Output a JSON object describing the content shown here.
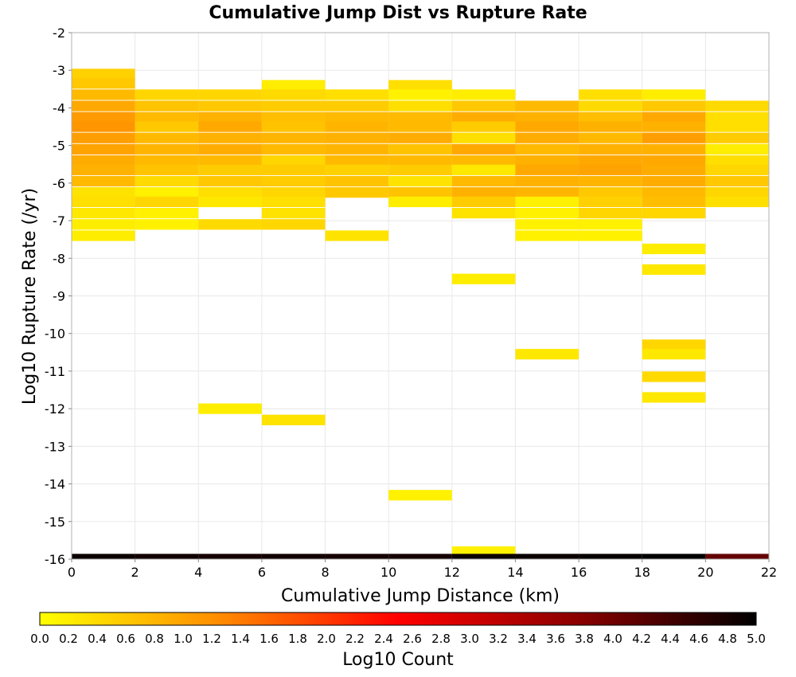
{
  "chart_data": {
    "type": "heatmap",
    "title": "Cumulative Jump Dist vs Rupture Rate",
    "xlabel": "Cumulative Jump Distance (km)",
    "ylabel": "Log10 Rupture Rate (/yr)",
    "xlim": [
      0,
      22
    ],
    "ylim": [
      -16,
      -2
    ],
    "x_ticks": [
      "0",
      "2",
      "4",
      "6",
      "8",
      "10",
      "12",
      "14",
      "16",
      "18",
      "20",
      "22"
    ],
    "y_ticks": [
      "-2",
      "-3",
      "-4",
      "-5",
      "-6",
      "-7",
      "-8",
      "-9",
      "-10",
      "-11",
      "-12",
      "-13",
      "-14",
      "-15",
      "-16"
    ],
    "grid": true,
    "x_bin_width": 2,
    "y_bin_height": 0.28,
    "colorbar": {
      "label": "Log10 Count",
      "range": [
        0,
        5
      ],
      "ticks": [
        "0.0",
        "0.2",
        "0.4",
        "0.6",
        "0.8",
        "1.0",
        "1.2",
        "1.4",
        "1.6",
        "1.8",
        "2.0",
        "2.2",
        "2.4",
        "2.6",
        "2.8",
        "3.0",
        "3.2",
        "3.4",
        "3.6",
        "3.8",
        "4.0",
        "4.2",
        "4.4",
        "4.6",
        "4.8",
        "5.0"
      ],
      "colormap": [
        "#ffff00",
        "#ff8c00",
        "#ff0000",
        "#8b0000",
        "#000000"
      ],
      "placement": "bottom"
    },
    "cells": [
      {
        "x": 0,
        "y": -3.1,
        "v": 0.5
      },
      {
        "x": 0,
        "y": -3.35,
        "v": 0.6
      },
      {
        "x": 0,
        "y": -3.65,
        "v": 0.75
      },
      {
        "x": 0,
        "y": -3.95,
        "v": 0.95
      },
      {
        "x": 0,
        "y": -4.25,
        "v": 1.1
      },
      {
        "x": 0,
        "y": -4.5,
        "v": 1.15
      },
      {
        "x": 0,
        "y": -4.8,
        "v": 1.05
      },
      {
        "x": 0,
        "y": -5.1,
        "v": 1.0
      },
      {
        "x": 0,
        "y": -5.4,
        "v": 0.9
      },
      {
        "x": 0,
        "y": -5.65,
        "v": 0.85
      },
      {
        "x": 0,
        "y": -5.95,
        "v": 0.75
      },
      {
        "x": 0,
        "y": -6.25,
        "v": 0.3
      },
      {
        "x": 0,
        "y": -6.5,
        "v": 0.35
      },
      {
        "x": 0,
        "y": -6.8,
        "v": 0.25
      },
      {
        "x": 0,
        "y": -7.1,
        "v": 0.2
      },
      {
        "x": 0,
        "y": -7.4,
        "v": 0.2
      },
      {
        "x": 2,
        "y": -3.65,
        "v": 0.45
      },
      {
        "x": 2,
        "y": -3.95,
        "v": 0.65
      },
      {
        "x": 2,
        "y": -4.25,
        "v": 0.75
      },
      {
        "x": 2,
        "y": -4.5,
        "v": 0.6
      },
      {
        "x": 2,
        "y": -4.8,
        "v": 0.75
      },
      {
        "x": 2,
        "y": -5.1,
        "v": 0.8
      },
      {
        "x": 2,
        "y": -5.4,
        "v": 0.75
      },
      {
        "x": 2,
        "y": -5.65,
        "v": 0.65
      },
      {
        "x": 2,
        "y": -5.95,
        "v": 0.4
      },
      {
        "x": 2,
        "y": -6.25,
        "v": 0.15
      },
      {
        "x": 2,
        "y": -6.5,
        "v": 0.45
      },
      {
        "x": 2,
        "y": -6.8,
        "v": 0.15
      },
      {
        "x": 2,
        "y": -7.1,
        "v": 0.15
      },
      {
        "x": 4,
        "y": -3.65,
        "v": 0.45
      },
      {
        "x": 4,
        "y": -3.95,
        "v": 0.6
      },
      {
        "x": 4,
        "y": -4.25,
        "v": 0.85
      },
      {
        "x": 4,
        "y": -4.5,
        "v": 0.95
      },
      {
        "x": 4,
        "y": -4.8,
        "v": 0.85
      },
      {
        "x": 4,
        "y": -5.1,
        "v": 0.9
      },
      {
        "x": 4,
        "y": -5.4,
        "v": 0.75
      },
      {
        "x": 4,
        "y": -5.65,
        "v": 0.55
      },
      {
        "x": 4,
        "y": -5.95,
        "v": 0.6
      },
      {
        "x": 4,
        "y": -6.25,
        "v": 0.35
      },
      {
        "x": 4,
        "y": -6.5,
        "v": 0.25
      },
      {
        "x": 4,
        "y": -7.1,
        "v": 0.4
      },
      {
        "x": 4,
        "y": -12.0,
        "v": 0.2
      },
      {
        "x": 6,
        "y": -3.4,
        "v": 0.2
      },
      {
        "x": 6,
        "y": -3.65,
        "v": 0.4
      },
      {
        "x": 6,
        "y": -3.95,
        "v": 0.55
      },
      {
        "x": 6,
        "y": -4.25,
        "v": 0.7
      },
      {
        "x": 6,
        "y": -4.5,
        "v": 0.65
      },
      {
        "x": 6,
        "y": -4.8,
        "v": 0.8
      },
      {
        "x": 6,
        "y": -5.1,
        "v": 0.75
      },
      {
        "x": 6,
        "y": -5.4,
        "v": 0.45
      },
      {
        "x": 6,
        "y": -5.65,
        "v": 0.55
      },
      {
        "x": 6,
        "y": -5.95,
        "v": 0.55
      },
      {
        "x": 6,
        "y": -6.25,
        "v": 0.45
      },
      {
        "x": 6,
        "y": -6.5,
        "v": 0.35
      },
      {
        "x": 6,
        "y": -6.8,
        "v": 0.3
      },
      {
        "x": 6,
        "y": -7.1,
        "v": 0.45
      },
      {
        "x": 6,
        "y": -12.3,
        "v": 0.3
      },
      {
        "x": 8,
        "y": -3.65,
        "v": 0.35
      },
      {
        "x": 8,
        "y": -3.95,
        "v": 0.55
      },
      {
        "x": 8,
        "y": -4.25,
        "v": 0.75
      },
      {
        "x": 8,
        "y": -4.5,
        "v": 0.8
      },
      {
        "x": 8,
        "y": -4.8,
        "v": 0.85
      },
      {
        "x": 8,
        "y": -5.1,
        "v": 0.8
      },
      {
        "x": 8,
        "y": -5.4,
        "v": 0.75
      },
      {
        "x": 8,
        "y": -5.65,
        "v": 0.5
      },
      {
        "x": 8,
        "y": -5.95,
        "v": 0.65
      },
      {
        "x": 8,
        "y": -6.25,
        "v": 0.6
      },
      {
        "x": 8,
        "y": -7.4,
        "v": 0.3
      },
      {
        "x": 10,
        "y": -3.4,
        "v": 0.35
      },
      {
        "x": 10,
        "y": -3.65,
        "v": 0.15
      },
      {
        "x": 10,
        "y": -3.95,
        "v": 0.35
      },
      {
        "x": 10,
        "y": -4.25,
        "v": 0.75
      },
      {
        "x": 10,
        "y": -4.5,
        "v": 0.75
      },
      {
        "x": 10,
        "y": -4.8,
        "v": 0.9
      },
      {
        "x": 10,
        "y": -5.1,
        "v": 0.65
      },
      {
        "x": 10,
        "y": -5.4,
        "v": 0.75
      },
      {
        "x": 10,
        "y": -5.65,
        "v": 0.55
      },
      {
        "x": 10,
        "y": -5.95,
        "v": 0.3
      },
      {
        "x": 10,
        "y": -6.25,
        "v": 0.65
      },
      {
        "x": 10,
        "y": -6.5,
        "v": 0.2
      },
      {
        "x": 10,
        "y": -14.3,
        "v": 0.15
      },
      {
        "x": 12,
        "y": -3.65,
        "v": 0.2
      },
      {
        "x": 12,
        "y": -3.95,
        "v": 0.6
      },
      {
        "x": 12,
        "y": -4.25,
        "v": 0.9
      },
      {
        "x": 12,
        "y": -4.5,
        "v": 0.55
      },
      {
        "x": 12,
        "y": -4.8,
        "v": 0.35
      },
      {
        "x": 12,
        "y": -5.1,
        "v": 0.95
      },
      {
        "x": 12,
        "y": -5.4,
        "v": 0.75
      },
      {
        "x": 12,
        "y": -5.65,
        "v": 0.25
      },
      {
        "x": 12,
        "y": -5.95,
        "v": 0.75
      },
      {
        "x": 12,
        "y": -6.25,
        "v": 0.85
      },
      {
        "x": 12,
        "y": -6.5,
        "v": 0.55
      },
      {
        "x": 12,
        "y": -6.8,
        "v": 0.3
      },
      {
        "x": 12,
        "y": -8.55,
        "v": 0.2
      },
      {
        "x": 12,
        "y": -15.8,
        "v": 0.15
      },
      {
        "x": 14,
        "y": -3.95,
        "v": 0.75
      },
      {
        "x": 14,
        "y": -4.25,
        "v": 0.85
      },
      {
        "x": 14,
        "y": -4.5,
        "v": 0.95
      },
      {
        "x": 14,
        "y": -4.8,
        "v": 0.9
      },
      {
        "x": 14,
        "y": -5.1,
        "v": 0.75
      },
      {
        "x": 14,
        "y": -5.4,
        "v": 0.85
      },
      {
        "x": 14,
        "y": -5.65,
        "v": 0.95
      },
      {
        "x": 14,
        "y": -5.95,
        "v": 0.85
      },
      {
        "x": 14,
        "y": -6.25,
        "v": 0.8
      },
      {
        "x": 14,
        "y": -6.5,
        "v": 0.15
      },
      {
        "x": 14,
        "y": -6.8,
        "v": 0.15
      },
      {
        "x": 14,
        "y": -7.1,
        "v": 0.15
      },
      {
        "x": 14,
        "y": -7.4,
        "v": 0.15
      },
      {
        "x": 14,
        "y": -10.55,
        "v": 0.25
      },
      {
        "x": 16,
        "y": -3.65,
        "v": 0.35
      },
      {
        "x": 16,
        "y": -3.95,
        "v": 0.4
      },
      {
        "x": 16,
        "y": -4.25,
        "v": 0.7
      },
      {
        "x": 16,
        "y": -4.5,
        "v": 0.85
      },
      {
        "x": 16,
        "y": -4.8,
        "v": 0.75
      },
      {
        "x": 16,
        "y": -5.1,
        "v": 0.85
      },
      {
        "x": 16,
        "y": -5.4,
        "v": 0.95
      },
      {
        "x": 16,
        "y": -5.65,
        "v": 1.0
      },
      {
        "x": 16,
        "y": -5.95,
        "v": 0.8
      },
      {
        "x": 16,
        "y": -6.25,
        "v": 0.6
      },
      {
        "x": 16,
        "y": -6.5,
        "v": 0.5
      },
      {
        "x": 16,
        "y": -6.8,
        "v": 0.45
      },
      {
        "x": 16,
        "y": -7.1,
        "v": 0.15
      },
      {
        "x": 16,
        "y": -7.4,
        "v": 0.15
      },
      {
        "x": 18,
        "y": -3.65,
        "v": 0.2
      },
      {
        "x": 18,
        "y": -3.95,
        "v": 0.6
      },
      {
        "x": 18,
        "y": -4.25,
        "v": 0.95
      },
      {
        "x": 18,
        "y": -4.5,
        "v": 0.85
      },
      {
        "x": 18,
        "y": -4.8,
        "v": 1.05
      },
      {
        "x": 18,
        "y": -5.1,
        "v": 0.85
      },
      {
        "x": 18,
        "y": -5.4,
        "v": 0.95
      },
      {
        "x": 18,
        "y": -5.65,
        "v": 0.9
      },
      {
        "x": 18,
        "y": -5.95,
        "v": 0.9
      },
      {
        "x": 18,
        "y": -6.25,
        "v": 0.75
      },
      {
        "x": 18,
        "y": -6.5,
        "v": 0.7
      },
      {
        "x": 18,
        "y": -6.8,
        "v": 0.45
      },
      {
        "x": 18,
        "y": -7.75,
        "v": 0.2
      },
      {
        "x": 18,
        "y": -8.3,
        "v": 0.25
      },
      {
        "x": 18,
        "y": -10.3,
        "v": 0.45
      },
      {
        "x": 18,
        "y": -10.55,
        "v": 0.25
      },
      {
        "x": 18,
        "y": -11.15,
        "v": 0.4
      },
      {
        "x": 18,
        "y": -11.7,
        "v": 0.25
      },
      {
        "x": 20,
        "y": -3.95,
        "v": 0.4
      },
      {
        "x": 20,
        "y": -4.25,
        "v": 0.35
      },
      {
        "x": 20,
        "y": -4.5,
        "v": 0.35
      },
      {
        "x": 20,
        "y": -4.8,
        "v": 0.55
      },
      {
        "x": 20,
        "y": -5.1,
        "v": 0.2
      },
      {
        "x": 20,
        "y": -5.4,
        "v": 0.35
      },
      {
        "x": 20,
        "y": -5.65,
        "v": 0.45
      },
      {
        "x": 20,
        "y": -5.95,
        "v": 0.6
      },
      {
        "x": 20,
        "y": -6.25,
        "v": 0.45
      },
      {
        "x": 20,
        "y": -6.5,
        "v": 0.35
      }
    ],
    "bottom_row": [
      {
        "x": 0,
        "y": -16,
        "v": 4.9
      },
      {
        "x": 2,
        "y": -16,
        "v": 4.85
      },
      {
        "x": 4,
        "y": -16,
        "v": 4.8
      },
      {
        "x": 6,
        "y": -16,
        "v": 4.85
      },
      {
        "x": 8,
        "y": -16,
        "v": 4.8
      },
      {
        "x": 10,
        "y": -16,
        "v": 4.8
      },
      {
        "x": 12,
        "y": -16,
        "v": 4.9
      },
      {
        "x": 14,
        "y": -16,
        "v": 4.9
      },
      {
        "x": 16,
        "y": -16,
        "v": 4.95
      },
      {
        "x": 18,
        "y": -16,
        "v": 5.0
      },
      {
        "x": 20,
        "y": -16,
        "v": 4.1
      }
    ]
  }
}
